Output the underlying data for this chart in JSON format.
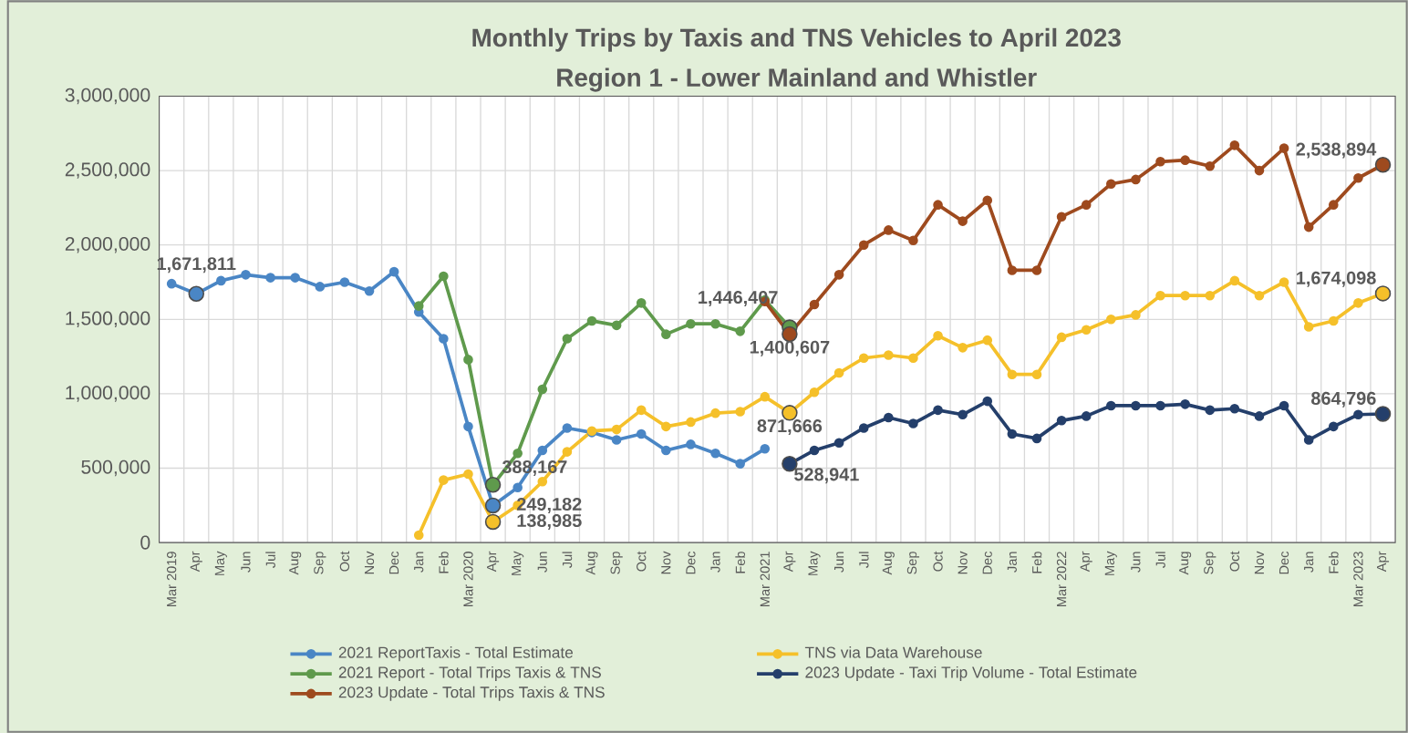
{
  "chart_data": {
    "type": "line",
    "title": "Monthly Trips by Taxis and TNS Vehicles to April 2023",
    "subtitle": "Region 1 - Lower Mainland and Whistler",
    "categories": [
      "Mar 2019",
      "Apr",
      "May",
      "Jun",
      "Jul",
      "Aug",
      "Sep",
      "Oct",
      "Nov",
      "Dec",
      "Jan",
      "Feb",
      "Mar 2020",
      "Apr",
      "May",
      "Jun",
      "Jul",
      "Aug",
      "Sep",
      "Oct",
      "Nov",
      "Dec",
      "Jan",
      "Feb",
      "Mar 2021",
      "Apr",
      "May",
      "Jun",
      "Jul",
      "Aug",
      "Sep",
      "Oct",
      "Nov",
      "Dec",
      "Jan",
      "Feb",
      "Mar 2022",
      "Apr",
      "May",
      "Jun",
      "Jul",
      "Aug",
      "Sep",
      "Oct",
      "Nov",
      "Dec",
      "Jan",
      "Feb",
      "Mar 2023",
      "Apr"
    ],
    "ylim": [
      0,
      3000000
    ],
    "yticks": [
      0,
      {
        "value": 500000,
        "label": "500,000"
      },
      {
        "value": 1000000,
        "label": "1,000,000"
      },
      {
        "value": 1500000,
        "label": "1,500,000"
      },
      {
        "value": 2000000,
        "label": "2,000,000"
      },
      {
        "value": 2500000,
        "label": "2,500,000"
      },
      {
        "value": 3000000,
        "label": "3,000,000"
      }
    ],
    "grid": true,
    "legend": "bottom",
    "marker": "circle",
    "line_style": "solid",
    "series": [
      {
        "name": "2021 ReportTaxis - Total Estimate",
        "color": "#4a86c5",
        "values": [
          1740000,
          1671811,
          1760000,
          1800000,
          1780000,
          1780000,
          1720000,
          1750000,
          1690000,
          1820000,
          1550000,
          1370000,
          780000,
          249182,
          370000,
          620000,
          770000,
          740000,
          690000,
          730000,
          620000,
          660000,
          600000,
          530000,
          630000,
          null,
          null,
          null,
          null,
          null,
          null,
          null,
          null,
          null,
          null,
          null,
          null,
          null,
          null,
          null,
          null,
          null,
          null,
          null,
          null,
          null,
          null,
          null,
          null,
          null
        ],
        "value_labels": [
          null,
          "1,671,811",
          null,
          null,
          null,
          null,
          null,
          null,
          null,
          null,
          null,
          null,
          null,
          "249,182",
          null,
          null,
          null,
          null,
          null,
          null,
          null,
          null,
          null,
          null,
          null,
          null,
          null,
          null,
          null,
          null,
          null,
          null,
          null,
          null,
          null,
          null,
          null,
          null,
          null,
          null,
          null,
          null,
          null,
          null,
          null,
          null,
          null,
          null,
          null,
          null
        ]
      },
      {
        "name": "TNS via Data Warehouse",
        "color": "#f5c02a",
        "values": [
          null,
          null,
          null,
          null,
          null,
          null,
          null,
          null,
          null,
          null,
          50000,
          420000,
          460000,
          138985,
          250000,
          410000,
          610000,
          750000,
          760000,
          890000,
          780000,
          810000,
          870000,
          880000,
          980000,
          871666,
          1010000,
          1140000,
          1240000,
          1260000,
          1240000,
          1390000,
          1310000,
          1360000,
          1130000,
          1130000,
          1380000,
          1430000,
          1500000,
          1530000,
          1660000,
          1660000,
          1660000,
          1760000,
          1660000,
          1750000,
          1450000,
          1490000,
          1610000,
          1674098
        ],
        "value_labels": [
          null,
          null,
          null,
          null,
          null,
          null,
          null,
          null,
          null,
          null,
          null,
          null,
          null,
          "138,985",
          null,
          null,
          null,
          null,
          null,
          null,
          null,
          null,
          null,
          null,
          null,
          "871,666",
          null,
          null,
          null,
          null,
          null,
          null,
          null,
          null,
          null,
          null,
          null,
          null,
          null,
          null,
          null,
          null,
          null,
          null,
          null,
          null,
          null,
          null,
          null,
          "1,674,098"
        ]
      },
      {
        "name": "2021 Report - Total Trips Taxis & TNS",
        "color": "#5f9a4c",
        "values": [
          null,
          null,
          null,
          null,
          null,
          null,
          null,
          null,
          null,
          null,
          1590000,
          1790000,
          1230000,
          388167,
          600000,
          1030000,
          1370000,
          1490000,
          1460000,
          1610000,
          1400000,
          1470000,
          1470000,
          1420000,
          1630000,
          1446407,
          null,
          null,
          null,
          null,
          null,
          null,
          null,
          null,
          null,
          null,
          null,
          null,
          null,
          null,
          null,
          null,
          null,
          null,
          null,
          null,
          null,
          null,
          null,
          null
        ],
        "value_labels": [
          null,
          null,
          null,
          null,
          null,
          null,
          null,
          null,
          null,
          null,
          null,
          null,
          null,
          "388,167",
          null,
          null,
          null,
          null,
          null,
          null,
          null,
          null,
          null,
          null,
          null,
          "1,446,407",
          null,
          null,
          null,
          null,
          null,
          null,
          null,
          null,
          null,
          null,
          null,
          null,
          null,
          null,
          null,
          null,
          null,
          null,
          null,
          null,
          null,
          null,
          null,
          null
        ]
      },
      {
        "name": "2023 Update - Taxi Trip Volume - Total Estimate",
        "color": "#243f6b",
        "values": [
          null,
          null,
          null,
          null,
          null,
          null,
          null,
          null,
          null,
          null,
          null,
          null,
          null,
          null,
          null,
          null,
          null,
          null,
          null,
          null,
          null,
          null,
          null,
          null,
          null,
          528941,
          620000,
          670000,
          770000,
          840000,
          800000,
          890000,
          860000,
          950000,
          730000,
          700000,
          820000,
          850000,
          920000,
          920000,
          920000,
          930000,
          890000,
          900000,
          850000,
          920000,
          690000,
          780000,
          860000,
          864796
        ],
        "value_labels": [
          null,
          null,
          null,
          null,
          null,
          null,
          null,
          null,
          null,
          null,
          null,
          null,
          null,
          null,
          null,
          null,
          null,
          null,
          null,
          null,
          null,
          null,
          null,
          null,
          null,
          "528,941",
          null,
          null,
          null,
          null,
          null,
          null,
          null,
          null,
          null,
          null,
          null,
          null,
          null,
          null,
          null,
          null,
          null,
          null,
          null,
          null,
          null,
          null,
          null,
          "864,796"
        ]
      },
      {
        "name": "2023 Update - Total Trips Taxis & TNS",
        "color": "#9e4a1e",
        "values": [
          null,
          null,
          null,
          null,
          null,
          null,
          null,
          null,
          null,
          null,
          null,
          null,
          null,
          null,
          null,
          null,
          null,
          null,
          null,
          null,
          null,
          null,
          null,
          null,
          1620000,
          1400607,
          1600000,
          1800000,
          2000000,
          2100000,
          2030000,
          2270000,
          2160000,
          2300000,
          1830000,
          1830000,
          2190000,
          2270000,
          2410000,
          2440000,
          2560000,
          2570000,
          2530000,
          2670000,
          2500000,
          2650000,
          2120000,
          2270000,
          2450000,
          2538894
        ],
        "value_labels": [
          null,
          null,
          null,
          null,
          null,
          null,
          null,
          null,
          null,
          null,
          null,
          null,
          null,
          null,
          null,
          null,
          null,
          null,
          null,
          null,
          null,
          null,
          null,
          null,
          null,
          "1,400,607",
          null,
          null,
          null,
          null,
          null,
          null,
          null,
          null,
          null,
          null,
          null,
          null,
          null,
          null,
          null,
          null,
          null,
          null,
          null,
          null,
          null,
          null,
          null,
          "2,538,894"
        ]
      }
    ]
  }
}
